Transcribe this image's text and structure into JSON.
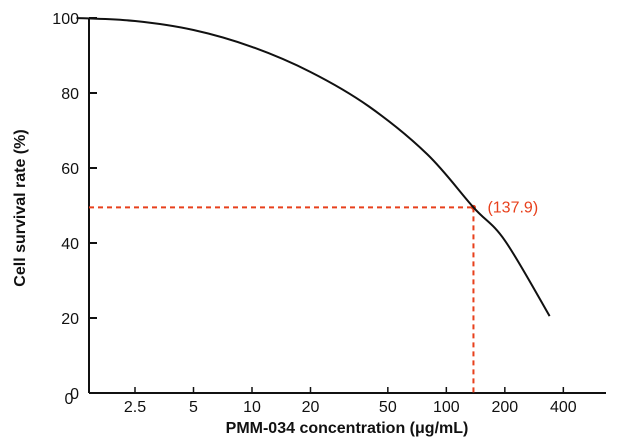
{
  "chart_data": {
    "type": "line",
    "title": "",
    "xlabel": "PMM-034 concentration (μg/mL)",
    "ylabel": "Cell survival rate (%)",
    "x_scale": "log2",
    "x_ticks": [
      2.5,
      5,
      10,
      20,
      50,
      100,
      200,
      400
    ],
    "x_tick_labels": [
      "2.5",
      "5",
      "10",
      "20",
      "50",
      "100",
      "200",
      "400"
    ],
    "x_range_labels": {
      "origin": "0"
    },
    "ylim": [
      0,
      100
    ],
    "y_ticks": [
      0,
      20,
      40,
      60,
      80,
      100
    ],
    "y_tick_labels": [
      "0",
      "20",
      "40",
      "60",
      "80",
      "100"
    ],
    "grid": false,
    "legend": "none",
    "series": [
      {
        "color": "#111111",
        "x": [
          1.25,
          2.5,
          5,
          10,
          20,
          40,
          80,
          137.9,
          200,
          340
        ],
        "y": [
          100,
          99.2,
          96.8,
          92.3,
          85.6,
          76.4,
          63.6,
          49.5,
          40.7,
          20.5
        ]
      }
    ],
    "annotation": {
      "label": "(137.9)",
      "x": 137.9,
      "y": 49.5,
      "color": "#e8401c",
      "style": "dashed"
    }
  }
}
